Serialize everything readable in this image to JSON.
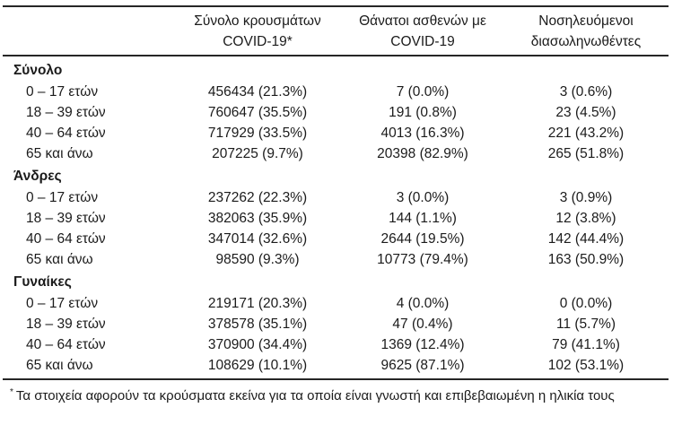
{
  "table": {
    "col_headers": [
      {
        "line1": "Σύνολο κρουσμάτων",
        "line2": "COVID-19*"
      },
      {
        "line1": "Θάνατοι ασθενών με",
        "line2": "COVID-19"
      },
      {
        "line1": "Νοσηλευόμενοι",
        "line2": "διασωληνωθέντες"
      }
    ],
    "sections": [
      {
        "label": "Σύνολο",
        "rows": [
          {
            "label": "0 – 17 ετών",
            "cells": [
              "456434 (21.3%)",
              "7 (0.0%)",
              "3 (0.6%)"
            ]
          },
          {
            "label": "18 – 39 ετών",
            "cells": [
              "760647 (35.5%)",
              "191 (0.8%)",
              "23 (4.5%)"
            ]
          },
          {
            "label": "40 – 64 ετών",
            "cells": [
              "717929 (33.5%)",
              "4013 (16.3%)",
              "221 (43.2%)"
            ]
          },
          {
            "label": "65 και άνω",
            "cells": [
              "207225 (9.7%)",
              "20398 (82.9%)",
              "265 (51.8%)"
            ]
          }
        ]
      },
      {
        "label": "Άνδρες",
        "rows": [
          {
            "label": "0 – 17 ετών",
            "cells": [
              "237262 (22.3%)",
              "3 (0.0%)",
              "3 (0.9%)"
            ]
          },
          {
            "label": "18 – 39 ετών",
            "cells": [
              "382063 (35.9%)",
              "144 (1.1%)",
              "12 (3.8%)"
            ]
          },
          {
            "label": "40 – 64 ετών",
            "cells": [
              "347014 (32.6%)",
              "2644 (19.5%)",
              "142 (44.4%)"
            ]
          },
          {
            "label": "65 και άνω",
            "cells": [
              "98590 (9.3%)",
              "10773 (79.4%)",
              "163 (50.9%)"
            ]
          }
        ]
      },
      {
        "label": "Γυναίκες",
        "rows": [
          {
            "label": "0 – 17 ετών",
            "cells": [
              "219171 (20.3%)",
              "4 (0.0%)",
              "0 (0.0%)"
            ]
          },
          {
            "label": "18 – 39 ετών",
            "cells": [
              "378578 (35.1%)",
              "47 (0.4%)",
              "11 (5.7%)"
            ]
          },
          {
            "label": "40 – 64 ετών",
            "cells": [
              "370900 (34.4%)",
              "1369 (12.4%)",
              "79 (41.1%)"
            ]
          },
          {
            "label": "65 και άνω",
            "cells": [
              "108629 (10.1%)",
              "9625 (87.1%)",
              "102 (53.1%)"
            ]
          }
        ]
      }
    ],
    "footnote": {
      "marker": "*",
      "text": "Τα στοιχεία αφορούν τα κρούσματα εκείνα για τα οποία είναι γνωστή και επιβεβαιωμένη η ηλικία τους"
    }
  }
}
